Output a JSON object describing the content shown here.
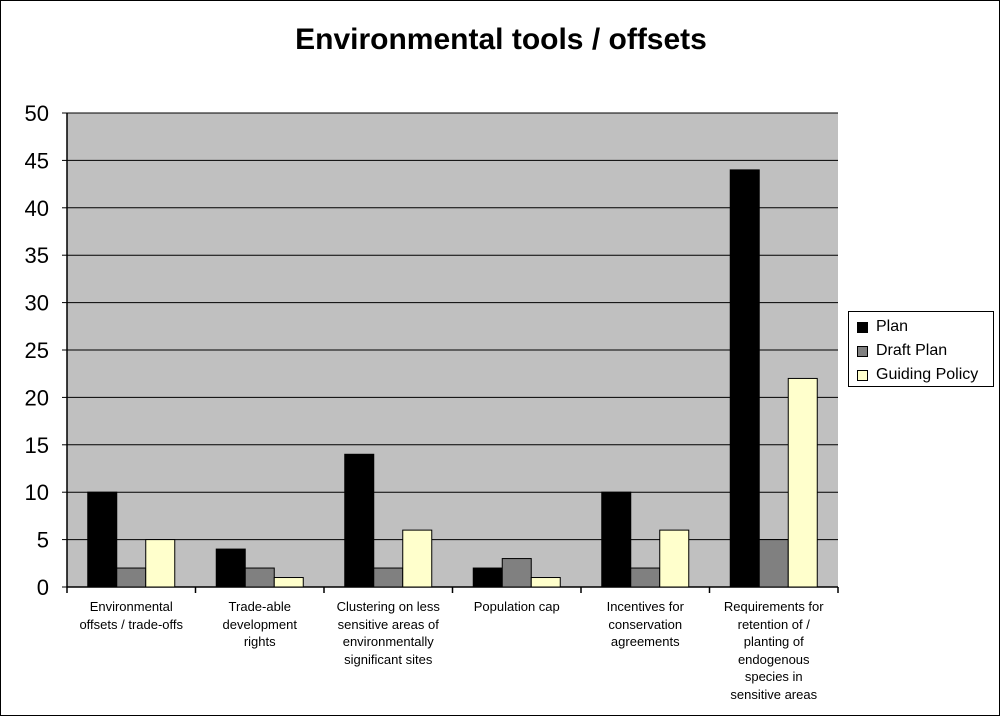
{
  "chart_data": {
    "type": "bar",
    "title": "Environmental tools / offsets",
    "xlabel": "",
    "ylabel": "",
    "ylim": [
      0,
      50
    ],
    "yticks": [
      0,
      5,
      10,
      15,
      20,
      25,
      30,
      35,
      40,
      45,
      50
    ],
    "grid": true,
    "legend_position": "right",
    "categories": [
      [
        "Environmental",
        "offsets / trade-offs"
      ],
      [
        "Trade-able",
        "development",
        "rights"
      ],
      [
        "Clustering on less",
        "sensitive areas of",
        "environmentally",
        "significant sites"
      ],
      [
        "Population cap"
      ],
      [
        "Incentives for",
        "conservation",
        "agreements"
      ],
      [
        "Requirements for",
        "retention of /",
        "planting of",
        "endogenous",
        "species in",
        "sensitive areas"
      ]
    ],
    "series": [
      {
        "name": "Plan",
        "color": "#000000",
        "values": [
          10,
          4,
          14,
          2,
          10,
          44
        ]
      },
      {
        "name": "Draft Plan",
        "color": "#808080",
        "values": [
          2,
          2,
          2,
          3,
          2,
          5
        ]
      },
      {
        "name": "Guiding Policy",
        "color": "#ffffcc",
        "values": [
          5,
          1,
          6,
          1,
          6,
          22
        ]
      }
    ]
  }
}
